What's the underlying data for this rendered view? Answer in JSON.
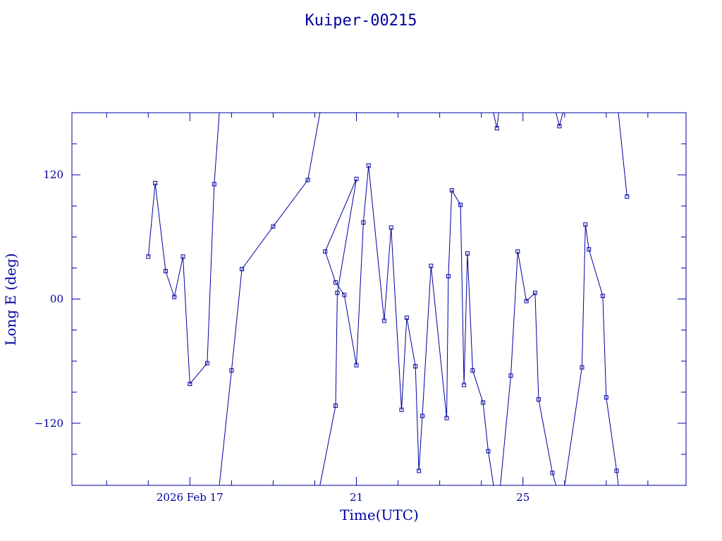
{
  "chart_data": {
    "type": "scatter",
    "title": "Kuiper-00215",
    "xlabel": "Time(UTC)",
    "ylabel": "Long E (deg)",
    "colors": {
      "axis": "#0000a0",
      "series": "#0000a0"
    },
    "x_unit": "days",
    "xlim": [
      "2026-02-14T04:00",
      "2026-02-28T22:00"
    ],
    "ylim": [
      -180,
      180
    ],
    "x_ticks": [
      {
        "at": "2026-02-17T00:00",
        "label": "2026 Feb 17"
      },
      {
        "at": "2026-02-21T00:00",
        "label": "21"
      },
      {
        "at": "2026-02-25T00:00",
        "label": "25"
      }
    ],
    "y_ticks": [
      {
        "value": 120,
        "label": "120"
      },
      {
        "value": 0,
        "label": "00"
      },
      {
        "value": -120,
        "label": "−120"
      }
    ],
    "grid": false,
    "series": [
      {
        "values": [
          [
            "2026-02-16T00:00",
            41
          ],
          [
            "2026-02-16T04:00",
            112
          ],
          [
            "2026-02-16T10:00",
            27
          ],
          [
            "2026-02-16T15:00",
            2
          ],
          [
            "2026-02-16T20:00",
            41
          ],
          [
            "2026-02-17T00:00",
            -82
          ],
          [
            "2026-02-17T10:00",
            -62
          ],
          [
            "2026-02-17T14:00",
            111
          ],
          [
            "2026-02-17T17:00",
            180
          ]
        ]
      },
      {
        "values": [
          [
            "2026-02-17T17:00",
            -180
          ],
          [
            "2026-02-18T00:00",
            -69
          ],
          [
            "2026-02-18T06:00",
            29
          ],
          [
            "2026-02-19T00:00",
            70
          ],
          [
            "2026-02-19T20:00",
            115
          ],
          [
            "2026-02-20T03:00",
            180
          ]
        ]
      },
      {
        "values": [
          [
            "2026-02-20T03:00",
            -180
          ],
          [
            "2026-02-20T12:00",
            -103
          ],
          [
            "2026-02-20T13:00",
            6
          ],
          [
            "2026-02-21T00:00",
            116
          ],
          [
            "2026-02-20T06:00",
            46
          ],
          [
            "2026-02-20T12:00",
            16
          ],
          [
            "2026-02-20T17:00",
            4
          ],
          [
            "2026-02-21T00:00",
            -64
          ],
          [
            "2026-02-21T04:00",
            74
          ],
          [
            "2026-02-21T07:00",
            129
          ],
          [
            "2026-02-21T16:00",
            -21
          ],
          [
            "2026-02-21T20:00",
            69
          ],
          [
            "2026-02-22T02:00",
            -107
          ],
          [
            "2026-02-22T05:00",
            -18
          ],
          [
            "2026-02-22T10:00",
            -65
          ],
          [
            "2026-02-22T12:00",
            -166
          ],
          [
            "2026-02-22T14:00",
            -113
          ],
          [
            "2026-02-22T19:00",
            32
          ],
          [
            "2026-02-23T04:00",
            -115
          ],
          [
            "2026-02-23T05:00",
            22
          ],
          [
            "2026-02-23T07:00",
            105
          ],
          [
            "2026-02-23T12:00",
            91
          ],
          [
            "2026-02-23T14:00",
            -83
          ],
          [
            "2026-02-23T16:00",
            44
          ],
          [
            "2026-02-23T19:00",
            -69
          ],
          [
            "2026-02-24T01:00",
            -100
          ],
          [
            "2026-02-24T04:00",
            -147
          ],
          [
            "2026-02-24T07:00",
            -180
          ]
        ]
      },
      {
        "values": [
          [
            "2026-02-24T07:00",
            180
          ],
          [
            "2026-02-24T09:00",
            165
          ],
          [
            "2026-02-24T10:00",
            180
          ]
        ]
      },
      {
        "values": [
          [
            "2026-02-24T11:00",
            -180
          ],
          [
            "2026-02-24T17:00",
            -74
          ],
          [
            "2026-02-24T21:00",
            46
          ],
          [
            "2026-02-25T02:00",
            -2
          ],
          [
            "2026-02-25T07:00",
            6
          ],
          [
            "2026-02-25T09:00",
            -97
          ],
          [
            "2026-02-25T17:00",
            -168
          ],
          [
            "2026-02-25T19:00",
            -180
          ]
        ]
      },
      {
        "values": [
          [
            "2026-02-25T19:00",
            180
          ],
          [
            "2026-02-25T21:00",
            167
          ],
          [
            "2026-02-25T23:00",
            180
          ]
        ]
      },
      {
        "values": [
          [
            "2026-02-26T00:00",
            -180
          ],
          [
            "2026-02-26T10:00",
            -66
          ],
          [
            "2026-02-26T12:00",
            72
          ],
          [
            "2026-02-26T14:00",
            48
          ],
          [
            "2026-02-26T22:00",
            3
          ],
          [
            "2026-02-27T00:00",
            -95
          ],
          [
            "2026-02-27T06:00",
            -166
          ],
          [
            "2026-02-27T07:00",
            -180
          ]
        ]
      },
      {
        "values": [
          [
            "2026-02-27T07:00",
            180
          ],
          [
            "2026-02-27T12:00",
            99
          ]
        ]
      }
    ]
  }
}
